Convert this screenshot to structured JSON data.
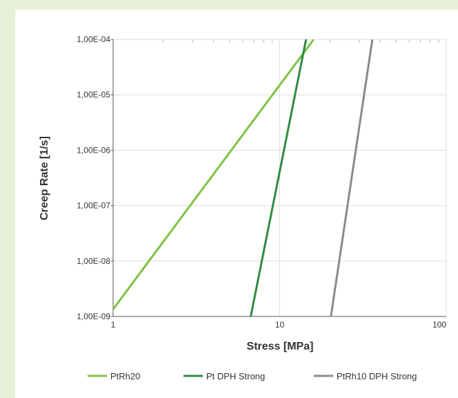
{
  "chart_data": {
    "type": "line",
    "xlabel": "Stress [MPa]",
    "ylabel": "Creep Rate [1/s]",
    "x_scale": "log",
    "y_scale": "log",
    "xlim": [
      1,
      100
    ],
    "ylim": [
      1e-09,
      0.0001
    ],
    "x_ticks": [
      {
        "value": 1,
        "label": "1"
      },
      {
        "value": 10,
        "label": "10"
      },
      {
        "value": 100,
        "label": "100"
      }
    ],
    "y_ticks": [
      {
        "value": 1e-09,
        "label": "1,00E-09"
      },
      {
        "value": 1e-08,
        "label": "1,00E-08"
      },
      {
        "value": 1e-07,
        "label": "1,00E-07"
      },
      {
        "value": 1e-06,
        "label": "1,00E-06"
      },
      {
        "value": 1e-05,
        "label": "1,00E-05"
      },
      {
        "value": 0.0001,
        "label": "1,00E-04"
      }
    ],
    "grid": true,
    "legend_position": "bottom",
    "series": [
      {
        "name": "PtRh20",
        "color": "#7dc242",
        "x": [
          1,
          16.0
        ],
        "y": [
          1.35e-09,
          0.0001
        ]
      },
      {
        "name": "Pt DPH Strong",
        "color": "#2e8b3e",
        "x": [
          6.7,
          14.4
        ],
        "y": [
          1e-09,
          0.0001
        ]
      },
      {
        "name": "PtRh10 DPH Strong",
        "color": "#8a8a8a",
        "x": [
          20.3,
          36.0
        ],
        "y": [
          1e-09,
          0.0001
        ]
      }
    ]
  }
}
